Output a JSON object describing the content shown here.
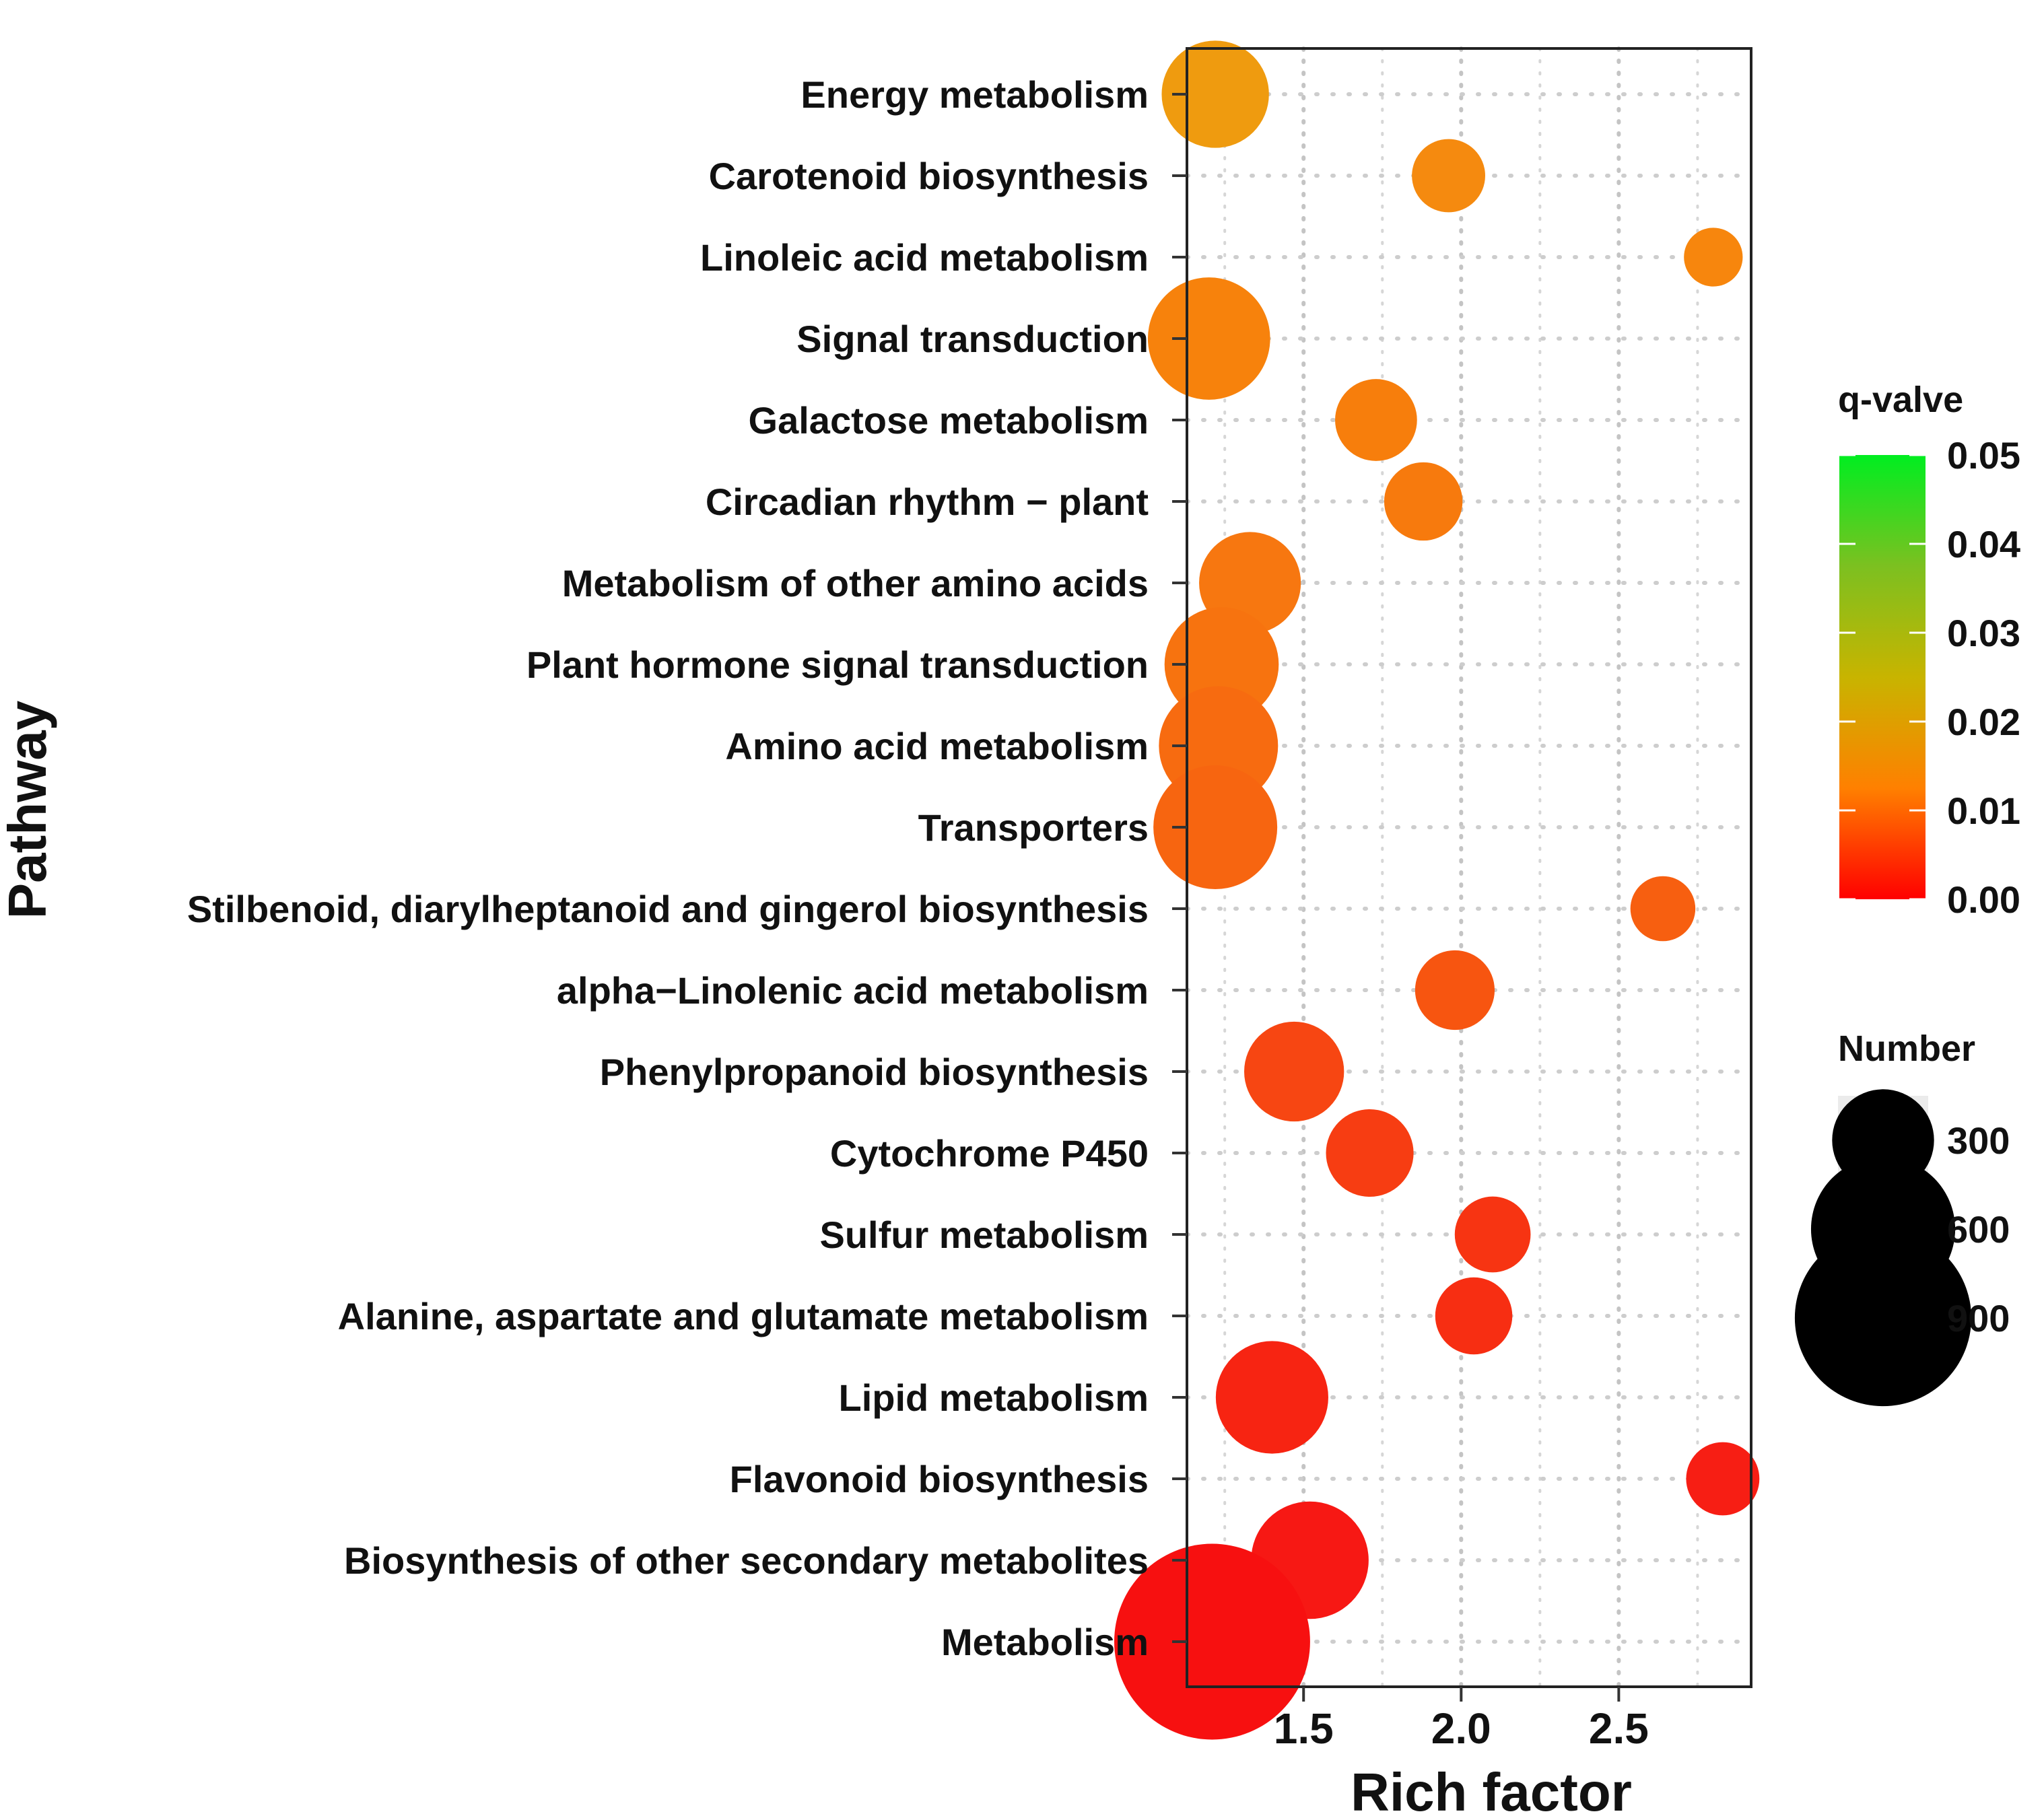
{
  "chart_data": {
    "type": "scatter",
    "subtype": "bubble",
    "xlabel": "Rich factor",
    "ylabel": "Pathway",
    "xlim": [
      1.13,
      2.92
    ],
    "x_ticks": [
      {
        "value": 1.5,
        "label": "1.5"
      },
      {
        "value": 2.0,
        "label": "2.0"
      },
      {
        "value": 2.5,
        "label": "2.5"
      }
    ],
    "x_gridlines": [
      1.25,
      1.5,
      1.75,
      2.0,
      2.25,
      2.5,
      2.75
    ],
    "grid": "dotted",
    "points": [
      {
        "pathway": "Energy metabolism",
        "rich_factor": 1.22,
        "number": 300,
        "q_value": 0.02,
        "color": "#ef9b0f"
      },
      {
        "pathway": "Carotenoid biosynthesis",
        "rich_factor": 1.96,
        "number": 140,
        "q_value": 0.016,
        "color": "#f58a0f"
      },
      {
        "pathway": "Linoleic acid metabolism",
        "rich_factor": 2.8,
        "number": 90,
        "q_value": 0.015,
        "color": "#f7860d"
      },
      {
        "pathway": "Signal transduction",
        "rich_factor": 1.2,
        "number": 390,
        "q_value": 0.014,
        "color": "#f7820c"
      },
      {
        "pathway": "Galactose metabolism",
        "rich_factor": 1.73,
        "number": 175,
        "q_value": 0.013,
        "color": "#f77e0c"
      },
      {
        "pathway": "Circadian rhythm - plant",
        "rich_factor": 1.88,
        "number": 160,
        "q_value": 0.012,
        "color": "#f77a0d"
      },
      {
        "pathway": "Metabolism of other amino acids",
        "rich_factor": 1.33,
        "number": 270,
        "q_value": 0.011,
        "color": "#f77710"
      },
      {
        "pathway": "Plant hormone signal transduction",
        "rich_factor": 1.24,
        "number": 340,
        "q_value": 0.011,
        "color": "#f7730f"
      },
      {
        "pathway": "Amino acid metabolism",
        "rich_factor": 1.23,
        "number": 370,
        "q_value": 0.01,
        "color": "#f76b10"
      },
      {
        "pathway": "Transporters",
        "rich_factor": 1.22,
        "number": 400,
        "q_value": 0.009,
        "color": "#f76510"
      },
      {
        "pathway": "Stilbenoid, diarylheptanoid and gingerol biosynthesis",
        "rich_factor": 2.64,
        "number": 110,
        "q_value": 0.008,
        "color": "#f75f10"
      },
      {
        "pathway": "alpha-Linolenic acid metabolism",
        "rich_factor": 1.98,
        "number": 165,
        "q_value": 0.007,
        "color": "#f75510"
      },
      {
        "pathway": "Phenylpropanoid biosynthesis",
        "rich_factor": 1.47,
        "number": 260,
        "q_value": 0.006,
        "color": "#f74612"
      },
      {
        "pathway": "Cytochrome P450",
        "rich_factor": 1.71,
        "number": 200,
        "q_value": 0.005,
        "color": "#f73d12"
      },
      {
        "pathway": "Sulfur metabolism",
        "rich_factor": 2.1,
        "number": 150,
        "q_value": 0.004,
        "color": "#f73412"
      },
      {
        "pathway": "Alanine, aspartate and glutamate metabolism",
        "rich_factor": 2.04,
        "number": 155,
        "q_value": 0.003,
        "color": "#f72e12"
      },
      {
        "pathway": "Lipid metabolism",
        "rich_factor": 1.4,
        "number": 330,
        "q_value": 0.002,
        "color": "#f72412"
      },
      {
        "pathway": "Flavonoid biosynthesis",
        "rich_factor": 2.83,
        "number": 140,
        "q_value": 0.001,
        "color": "#f71e14"
      },
      {
        "pathway": "Biosynthesis of other secondary metabolites",
        "rich_factor": 1.52,
        "number": 360,
        "q_value": 0.001,
        "color": "#f71814"
      },
      {
        "pathway": "Metabolism",
        "rich_factor": 1.21,
        "number": 1000,
        "q_value": 0.0,
        "color": "#f71010"
      }
    ],
    "legend": {
      "color": {
        "title": "q-valve",
        "ticks": [
          "0.05",
          "0.04",
          "0.03",
          "0.02",
          "0.01",
          "0.00"
        ],
        "range": [
          0.0,
          0.05
        ],
        "gradient": [
          "#ff0000",
          "#ff8000",
          "#c8b400",
          "#7cc020",
          "#00ee20"
        ]
      },
      "size": {
        "title": "Number",
        "entries": [
          {
            "value": 300,
            "label": "300"
          },
          {
            "value": 600,
            "label": "600"
          },
          {
            "value": 900,
            "label": "900"
          }
        ]
      },
      "placement": "right"
    }
  }
}
